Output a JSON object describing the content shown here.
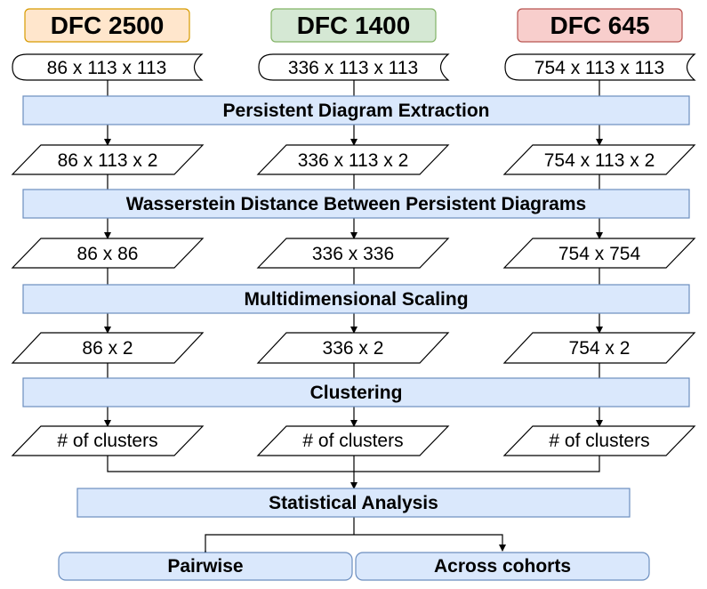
{
  "headers": [
    {
      "label": "DFC 2500",
      "fill": "#ffe6cc",
      "stroke": "#d79b00"
    },
    {
      "label": "DFC 1400",
      "fill": "#d5e8d4",
      "stroke": "#82b366"
    },
    {
      "label": "DFC 645",
      "fill": "#f8cecc",
      "stroke": "#b85450"
    }
  ],
  "inputs": [
    "86 x 113 x 113",
    "336 x 113 x 113",
    "754 x 113 x 113"
  ],
  "steps": [
    {
      "label": "Persistent Diagram Extraction",
      "outputs": [
        "86 x 113 x 2",
        "336 x 113 x 2",
        "754 x 113 x 2"
      ]
    },
    {
      "label": "Wasserstein Distance Between Persistent Diagrams",
      "outputs": [
        "86 x 86",
        "336 x 336",
        "754 x 754"
      ]
    },
    {
      "label": "Multidimensional Scaling",
      "outputs": [
        "86 x 2",
        "336 x 2",
        "754 x 2"
      ]
    },
    {
      "label": "Clustering",
      "outputs": [
        "# of clusters",
        "# of clusters",
        "# of clusters"
      ]
    }
  ],
  "analysis": {
    "label": "Statistical Analysis"
  },
  "results": [
    "Pairwise",
    "Across cohorts"
  ],
  "colors": {
    "process_fill": "#dae8fc",
    "process_stroke": "#6c8ebf",
    "line": "#000000"
  }
}
